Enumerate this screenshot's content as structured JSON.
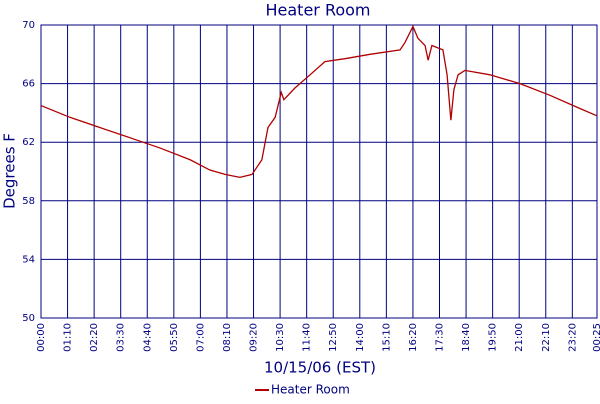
{
  "chart_data": {
    "type": "line",
    "title": "Heater Room",
    "xlabel": "10/15/06 (EST)",
    "ylabel": "Degrees F",
    "x": [
      0,
      76,
      155,
      235,
      314,
      393,
      445,
      485,
      524,
      556,
      582,
      598,
      617,
      633,
      640,
      669,
      709,
      748,
      801,
      867,
      946,
      959,
      980,
      993,
      1012,
      1020,
      1030,
      1059,
      1070,
      1080,
      1088,
      1099,
      1117,
      1183,
      1262,
      1341,
      1420,
      1465
    ],
    "series": [
      {
        "name": "Heater Room",
        "color": "#b00000",
        "values": [
          64.5,
          63.7,
          63.0,
          62.3,
          61.6,
          60.8,
          60.1,
          59.8,
          59.6,
          59.8,
          60.8,
          63.0,
          63.7,
          65.4,
          64.9,
          65.7,
          66.6,
          67.5,
          67.7,
          68.0,
          68.3,
          68.8,
          69.9,
          69.1,
          68.6,
          67.6,
          68.6,
          68.3,
          66.6,
          63.5,
          65.6,
          66.6,
          66.9,
          66.6,
          66.0,
          65.2,
          64.3,
          63.8
        ]
      }
    ],
    "xlim": [
      0,
      1465
    ],
    "xticks": [
      {
        "value": 0,
        "label": "00:00"
      },
      {
        "value": 70,
        "label": "01:10"
      },
      {
        "value": 140,
        "label": "02:20"
      },
      {
        "value": 210,
        "label": "03:30"
      },
      {
        "value": 280,
        "label": "04:40"
      },
      {
        "value": 350,
        "label": "05:50"
      },
      {
        "value": 420,
        "label": "07:00"
      },
      {
        "value": 490,
        "label": "08:10"
      },
      {
        "value": 560,
        "label": "09:20"
      },
      {
        "value": 630,
        "label": "10:30"
      },
      {
        "value": 700,
        "label": "11:40"
      },
      {
        "value": 770,
        "label": "12:50"
      },
      {
        "value": 840,
        "label": "14:00"
      },
      {
        "value": 910,
        "label": "15:10"
      },
      {
        "value": 980,
        "label": "16:20"
      },
      {
        "value": 1050,
        "label": "17:30"
      },
      {
        "value": 1120,
        "label": "18:40"
      },
      {
        "value": 1190,
        "label": "19:50"
      },
      {
        "value": 1260,
        "label": "21:00"
      },
      {
        "value": 1330,
        "label": "22:10"
      },
      {
        "value": 1400,
        "label": "23:20"
      },
      {
        "value": 1465,
        "label": "00:25"
      }
    ],
    "ylim": [
      50,
      70
    ],
    "yticks": [
      50,
      54,
      58,
      62,
      66,
      70
    ],
    "grid": true,
    "grid_color": "#000080",
    "legend": "bottom"
  }
}
